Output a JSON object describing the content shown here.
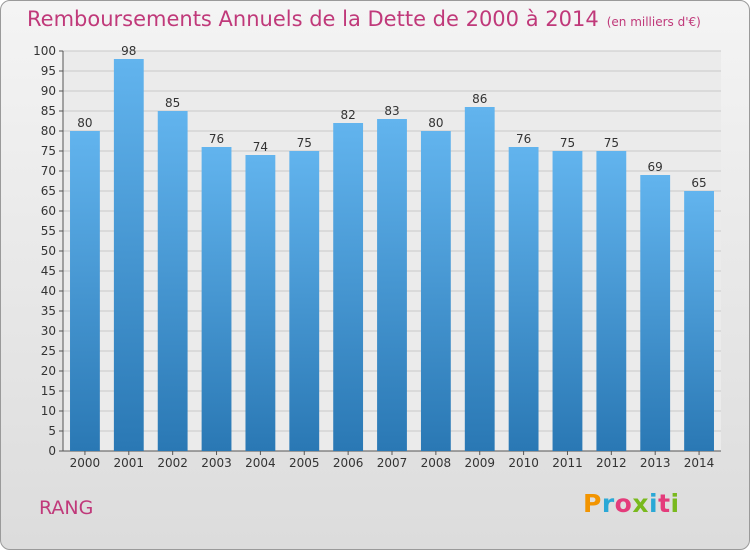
{
  "title": "Remboursements Annuels de la Dette de 2000 à 2014",
  "unit": "(en milliers d'€)",
  "footer_label": "RANG",
  "logo_text": "Proxiti",
  "logo_colors": [
    "#f29400",
    "#2aa8d6",
    "#e43c7b",
    "#79b91e",
    "#2aa8d6",
    "#e43c7b",
    "#79b91e"
  ],
  "colors": {
    "bar_top": "#62b4ee",
    "bar_bottom": "#2a78b4",
    "grid": "#c8c8c8",
    "accent": "#c0397a"
  },
  "chart_data": {
    "type": "bar",
    "categories": [
      "2000",
      "2001",
      "2002",
      "2003",
      "2004",
      "2005",
      "2006",
      "2007",
      "2008",
      "2009",
      "2010",
      "2011",
      "2012",
      "2013",
      "2014"
    ],
    "values": [
      80,
      98,
      85,
      76,
      74,
      75,
      82,
      83,
      80,
      86,
      76,
      75,
      75,
      69,
      65
    ],
    "ylim": [
      0,
      100
    ],
    "yticks": [
      0,
      5,
      10,
      15,
      20,
      25,
      30,
      35,
      40,
      45,
      50,
      55,
      60,
      65,
      70,
      75,
      80,
      85,
      90,
      95,
      100
    ],
    "grid": true,
    "data_labels": true
  }
}
